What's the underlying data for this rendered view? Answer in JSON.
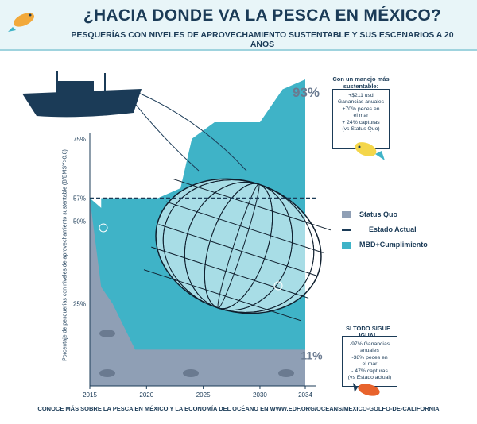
{
  "header": {
    "title": "¿HACIA DONDE VA LA PESCA EN MÉXICO?",
    "subtitle": "PESQUERÍAS CON NIVELES DE APROVECHAMIENTO SUSTENTABLE Y SUS ESCENARIOS A 20 AÑOS"
  },
  "footer": {
    "text": "CONOCE MÁS SOBRE LA PESCA EN MÉXICO Y LA ECONOMÍA DEL OCÉANO EN WWW.EDF.ORG/OCEANS/MEXICO-GOLFO-DE-CALIFORNIA"
  },
  "annotations": {
    "top_value": "93%",
    "bottom_value": "11%",
    "good_title": "Con un manejo más sustentable:",
    "good_lines": [
      "+$211 usd",
      "Ganancias anuales",
      "+70% peces en",
      "el mar",
      "+ 24% capturas",
      "(vs Status Quo)"
    ],
    "bad_title": "SI TODO SIGUE IGUAL",
    "bad_lines": [
      "-97% Ganancias",
      "anuales",
      "-38% peces en",
      "el mar",
      "- 47% capturas",
      "(vs Estado actual)"
    ]
  },
  "colors": {
    "status_quo": "#8f9fb5",
    "mbd": "#3fb3c7",
    "navy": "#1b3b57",
    "header_bg": "#e8f5f8"
  },
  "chart_data": {
    "type": "area",
    "xlabel": "",
    "ylabel": "Porcentaje de pesquerías con niveles de aprovechamiento sustentable (B/BMSY>0.8)",
    "x_ticks": [
      "2015",
      "2020",
      "2025",
      "2030",
      "2034"
    ],
    "y_ticks": [
      "75%",
      "57%",
      "50%",
      "25%"
    ],
    "ylim": [
      0,
      100
    ],
    "legend": [
      "Status Quo",
      "Estado Actual",
      "MBD+Cumplimiento"
    ],
    "series": [
      {
        "name": "Status Quo",
        "x": [
          2015,
          2016,
          2017,
          2019,
          2034
        ],
        "y": [
          57,
          30,
          25,
          11,
          11
        ]
      },
      {
        "name": "MBD+Cumplimiento",
        "x": [
          2015,
          2016,
          2016,
          2021,
          2023,
          2024,
          2026,
          2030,
          2032,
          2034
        ],
        "y": [
          57,
          54,
          57,
          57,
          60,
          75,
          80,
          80,
          90,
          93
        ]
      }
    ],
    "reference_line": {
      "name": "Estado Actual",
      "y": 57
    }
  }
}
